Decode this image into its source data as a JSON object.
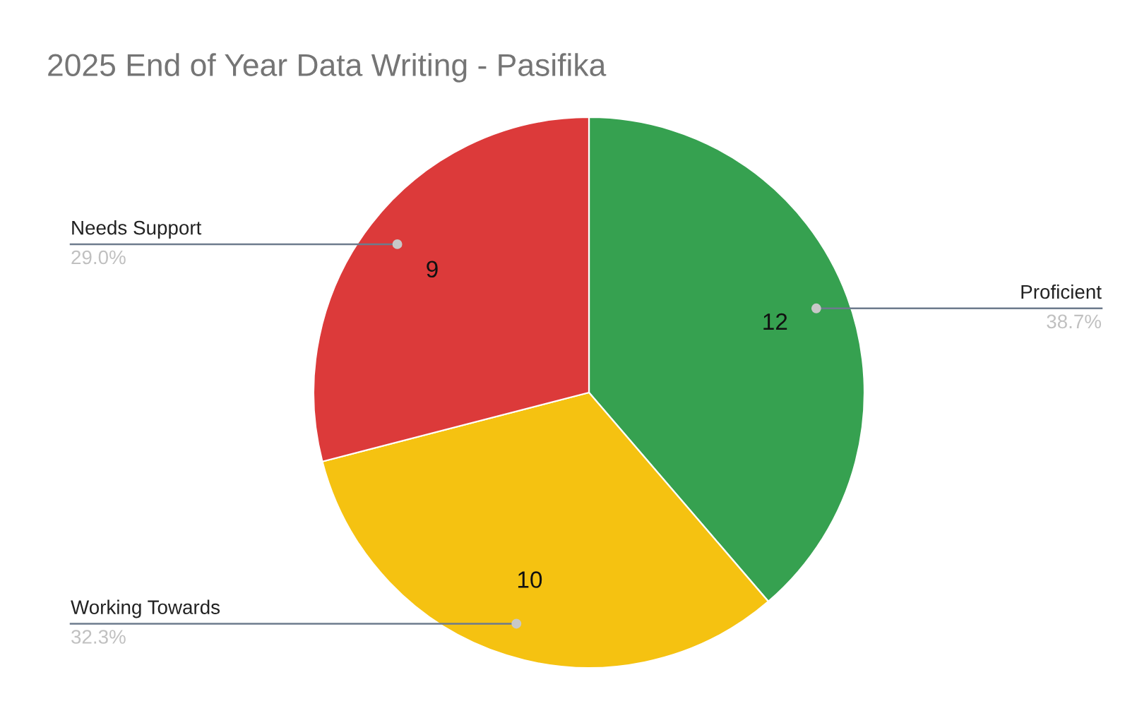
{
  "chart_data": {
    "type": "pie",
    "title": "2025 End of Year Data Writing - Pasifika",
    "categories": [
      "Proficient",
      "Working Towards",
      "Needs Support"
    ],
    "values": [
      12,
      10,
      9
    ],
    "colors": [
      "#36a150",
      "#f5c211",
      "#dc3a3a"
    ],
    "data_labels": true,
    "annotations": [
      {
        "text": "38.7%",
        "x": "Proficient"
      },
      {
        "text": "32.3%",
        "x": "Working Towards"
      },
      {
        "text": "29.0%",
        "x": "Needs Support"
      }
    ],
    "legend": false
  }
}
